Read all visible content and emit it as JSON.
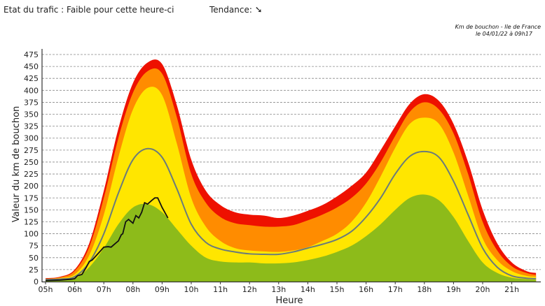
{
  "header": {
    "status_text": "Etat du trafic : Faible pour cette heure-ci",
    "trend_label": "Tendance:",
    "trend_icon": "arrow-down-right-icon",
    "trend_glyph": "➘"
  },
  "chart_data": {
    "type": "area",
    "title": "Km de bouchon - Ile de France",
    "subtitle": "le 04/01/22 à 09h17",
    "xlabel": "Heure",
    "ylabel": "Valeur du  km de bouchon",
    "xlim": [
      4.9,
      22
    ],
    "ylim": [
      0,
      475
    ],
    "y_ticks": [
      0,
      25,
      50,
      75,
      100,
      125,
      150,
      175,
      200,
      225,
      250,
      275,
      300,
      325,
      350,
      375,
      400,
      425,
      450,
      475
    ],
    "x_ticks": [
      5,
      6,
      7,
      8,
      9,
      10,
      11,
      12,
      13,
      14,
      15,
      16,
      17,
      18,
      19,
      20,
      21
    ],
    "x_tick_labels": [
      "05h",
      "06h",
      "07h",
      "08h",
      "09h",
      "10h",
      "11h",
      "12h",
      "13h",
      "14h",
      "15h",
      "16h",
      "17h",
      "18h",
      "19h",
      "20h",
      "21h"
    ],
    "grid": true,
    "x": [
      5,
      5.5,
      6,
      6.5,
      7,
      7.5,
      8,
      8.5,
      9,
      9.5,
      10,
      10.5,
      11,
      11.5,
      12,
      12.5,
      13,
      13.5,
      14,
      14.5,
      15,
      15.5,
      16,
      16.5,
      17,
      17.5,
      18,
      18.5,
      19,
      19.5,
      20,
      20.5,
      21,
      21.5,
      21.83
    ],
    "bands": [
      {
        "color": "#ee1100",
        "values": [
          7,
          10,
          25,
          80,
          190,
          320,
          415,
          458,
          455,
          370,
          255,
          190,
          160,
          145,
          140,
          138,
          133,
          138,
          148,
          160,
          178,
          200,
          228,
          275,
          325,
          372,
          392,
          378,
          330,
          250,
          150,
          80,
          40,
          22,
          18
        ]
      },
      {
        "color": "#ff8c00",
        "values": [
          6,
          9,
          22,
          72,
          175,
          300,
          395,
          440,
          435,
          345,
          225,
          165,
          135,
          122,
          118,
          115,
          115,
          118,
          128,
          140,
          155,
          175,
          205,
          250,
          305,
          355,
          375,
          360,
          310,
          225,
          125,
          65,
          32,
          18,
          14
        ]
      },
      {
        "color": "#ffe600",
        "values": [
          5,
          7,
          15,
          55,
          140,
          260,
          360,
          405,
          390,
          290,
          175,
          115,
          85,
          70,
          65,
          63,
          62,
          65,
          72,
          85,
          100,
          125,
          165,
          220,
          280,
          330,
          343,
          330,
          270,
          180,
          90,
          45,
          22,
          12,
          10
        ]
      },
      {
        "color": "#8dbb1a",
        "values": [
          2,
          3,
          6,
          30,
          70,
          120,
          155,
          162,
          145,
          110,
          75,
          50,
          42,
          40,
          40,
          38,
          38,
          40,
          45,
          52,
          62,
          75,
          95,
          120,
          150,
          175,
          182,
          170,
          135,
          85,
          40,
          18,
          8,
          5,
          4
        ]
      }
    ],
    "average_line": {
      "color": "#6b7b7b",
      "values": [
        4,
        5,
        10,
        40,
        100,
        185,
        255,
        278,
        260,
        195,
        120,
        82,
        68,
        62,
        58,
        57,
        57,
        62,
        70,
        78,
        88,
        105,
        135,
        175,
        225,
        262,
        272,
        260,
        210,
        140,
        70,
        30,
        12,
        7,
        6
      ]
    },
    "today_line": {
      "color": "#111111",
      "x": [
        5,
        5.5,
        5.9,
        6.0,
        6.1,
        6.25,
        6.4,
        6.5,
        6.6,
        6.75,
        6.9,
        7.0,
        7.15,
        7.25,
        7.4,
        7.5,
        7.6,
        7.65,
        7.75,
        7.85,
        8.0,
        8.1,
        8.2,
        8.3,
        8.4,
        8.5,
        8.65,
        8.75,
        8.85,
        9.0,
        9.2
      ],
      "values": [
        2,
        3,
        5,
        6,
        12,
        15,
        30,
        42,
        45,
        55,
        65,
        72,
        73,
        72,
        80,
        85,
        98,
        100,
        125,
        130,
        122,
        138,
        133,
        145,
        165,
        162,
        170,
        175,
        175,
        155,
        133
      ]
    }
  }
}
